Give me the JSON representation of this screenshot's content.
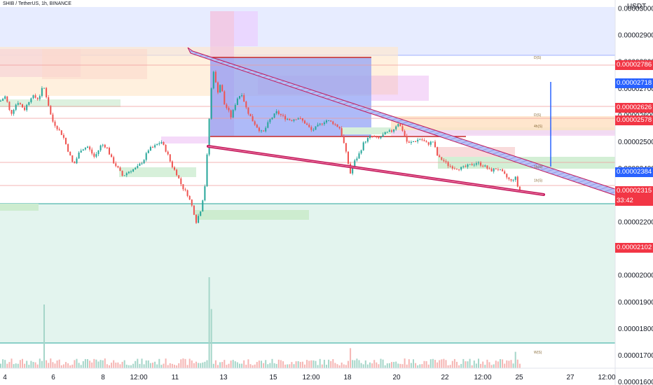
{
  "header": {
    "title": "SHIB / TetherUS, 1h, BINANCE",
    "currency": "USDT"
  },
  "colors": {
    "up": "#26a69a",
    "down": "#ef5350",
    "red_tag": "#f23645",
    "blue_tag": "#2962ff",
    "zone_green": "#4caf50",
    "pattern_line": "#d1456a",
    "pattern_fill": "#9aa6f0"
  },
  "chart_data": {
    "type": "candlestick",
    "title": "",
    "y_ticks": [
      "0.00003000",
      "0.00002900",
      "0.00002800",
      "0.00002700",
      "0.00002600",
      "0.00002500",
      "0.00002400",
      "0.00002300",
      "0.00002200",
      "0.00002100",
      "0.00002000",
      "0.00001900",
      "0.00001800",
      "0.00001700",
      "0.00001600"
    ],
    "x_ticks": [
      "4",
      "6",
      "8",
      "12:00",
      "11",
      "13",
      "15",
      "12:00",
      "18",
      "20",
      "22",
      "12:00",
      "25",
      "27",
      "12:00"
    ],
    "ylim": [
      1.59e-05,
      3.03e-05
    ],
    "price_tags": [
      {
        "label": "0.00002786",
        "value": 2.786e-05,
        "color": "red"
      },
      {
        "label": "0.00002718",
        "value": 2.718e-05,
        "color": "blue"
      },
      {
        "label": "0.00002626",
        "value": 2.626e-05,
        "color": "red"
      },
      {
        "label": "0.00002578",
        "value": 2.578e-05,
        "color": "red"
      },
      {
        "label": "0.00002384",
        "value": 2.384e-05,
        "color": "blue"
      },
      {
        "label": "0.00002315",
        "value": 2.315e-05,
        "color": "red",
        "sub": "33:42"
      },
      {
        "label": "0.00002102",
        "value": 2.102e-05,
        "color": "red"
      }
    ],
    "level_labels": [
      {
        "label": "D(S)",
        "value": 2.81e-05
      },
      {
        "label": "D(S)",
        "value": 2.595e-05
      },
      {
        "label": "4h(S)",
        "value": 2.552e-05
      },
      {
        "label": "1h(S)",
        "value": 2.4e-05
      },
      {
        "label": "1h(S)",
        "value": 2.35e-05
      },
      {
        "label": "W(S)",
        "value": 1.705e-05
      }
    ],
    "price_path": [
      [
        0,
        2.65e-05
      ],
      [
        8,
        2.67e-05
      ],
      [
        15,
        2.6e-05
      ],
      [
        25,
        2.65e-05
      ],
      [
        35,
        2.62e-05
      ],
      [
        45,
        2.67e-05
      ],
      [
        55,
        2.66e-05
      ],
      [
        62,
        2.71e-05
      ],
      [
        68,
        2.65e-05
      ],
      [
        74,
        2.58e-05
      ],
      [
        82,
        2.55e-05
      ],
      [
        90,
        2.52e-05
      ],
      [
        98,
        2.46e-05
      ],
      [
        105,
        2.41e-05
      ],
      [
        115,
        2.47e-05
      ],
      [
        125,
        2.48e-05
      ],
      [
        135,
        2.44e-05
      ],
      [
        145,
        2.49e-05
      ],
      [
        152,
        2.48e-05
      ],
      [
        160,
        2.43e-05
      ],
      [
        168,
        2.4e-05
      ],
      [
        175,
        2.37e-05
      ],
      [
        185,
        2.39e-05
      ],
      [
        195,
        2.4e-05
      ],
      [
        205,
        2.43e-05
      ],
      [
        212,
        2.47e-05
      ],
      [
        220,
        2.48e-05
      ],
      [
        230,
        2.5e-05
      ],
      [
        238,
        2.46e-05
      ],
      [
        245,
        2.41e-05
      ],
      [
        252,
        2.38e-05
      ],
      [
        260,
        2.33e-05
      ],
      [
        268,
        2.3e-05
      ],
      [
        275,
        2.25e-05
      ],
      [
        280,
        2.2e-05
      ],
      [
        286,
        2.24e-05
      ],
      [
        292,
        2.32e-05
      ],
      [
        297,
        2.5e-05
      ],
      [
        300,
        2.66e-05
      ],
      [
        305,
        2.77e-05
      ],
      [
        310,
        2.68e-05
      ],
      [
        315,
        2.72e-05
      ],
      [
        320,
        2.64e-05
      ],
      [
        325,
        2.62e-05
      ],
      [
        330,
        2.59e-05
      ],
      [
        338,
        2.66e-05
      ],
      [
        345,
        2.68e-05
      ],
      [
        352,
        2.62e-05
      ],
      [
        360,
        2.58e-05
      ],
      [
        368,
        2.55e-05
      ],
      [
        375,
        2.53e-05
      ],
      [
        385,
        2.58e-05
      ],
      [
        395,
        2.61e-05
      ],
      [
        405,
        2.59e-05
      ],
      [
        415,
        2.58e-05
      ],
      [
        425,
        2.59e-05
      ],
      [
        435,
        2.57e-05
      ],
      [
        445,
        2.54e-05
      ],
      [
        455,
        2.56e-05
      ],
      [
        465,
        2.58e-05
      ],
      [
        475,
        2.57e-05
      ],
      [
        485,
        2.55e-05
      ],
      [
        492,
        2.48e-05
      ],
      [
        500,
        2.38e-05
      ],
      [
        505,
        2.42e-05
      ],
      [
        512,
        2.45e-05
      ],
      [
        520,
        2.5e-05
      ],
      [
        530,
        2.52e-05
      ],
      [
        540,
        2.51e-05
      ],
      [
        550,
        2.53e-05
      ],
      [
        560,
        2.54e-05
      ],
      [
        568,
        2.57e-05
      ],
      [
        575,
        2.54e-05
      ],
      [
        582,
        2.49e-05
      ],
      [
        590,
        2.5e-05
      ],
      [
        600,
        2.51e-05
      ],
      [
        610,
        2.49e-05
      ],
      [
        618,
        2.5e-05
      ],
      [
        625,
        2.44e-05
      ],
      [
        632,
        2.43e-05
      ],
      [
        640,
        2.41e-05
      ],
      [
        650,
        2.4e-05
      ],
      [
        660,
        2.4e-05
      ],
      [
        670,
        2.41e-05
      ],
      [
        680,
        2.42e-05
      ],
      [
        690,
        2.41e-05
      ],
      [
        700,
        2.39e-05
      ],
      [
        710,
        2.4e-05
      ],
      [
        718,
        2.38e-05
      ],
      [
        725,
        2.36e-05
      ],
      [
        730,
        2.35e-05
      ],
      [
        735,
        2.37e-05
      ],
      [
        740,
        2.32e-05
      ],
      [
        745,
        2.31e-05
      ]
    ],
    "volume_spikes": [
      {
        "x": 62,
        "value": 0.7
      },
      {
        "x": 298,
        "value": 1.0
      },
      {
        "x": 302,
        "value": 0.65
      },
      {
        "x": 500,
        "value": 0.22
      },
      {
        "x": 736,
        "value": 0.18
      }
    ]
  }
}
